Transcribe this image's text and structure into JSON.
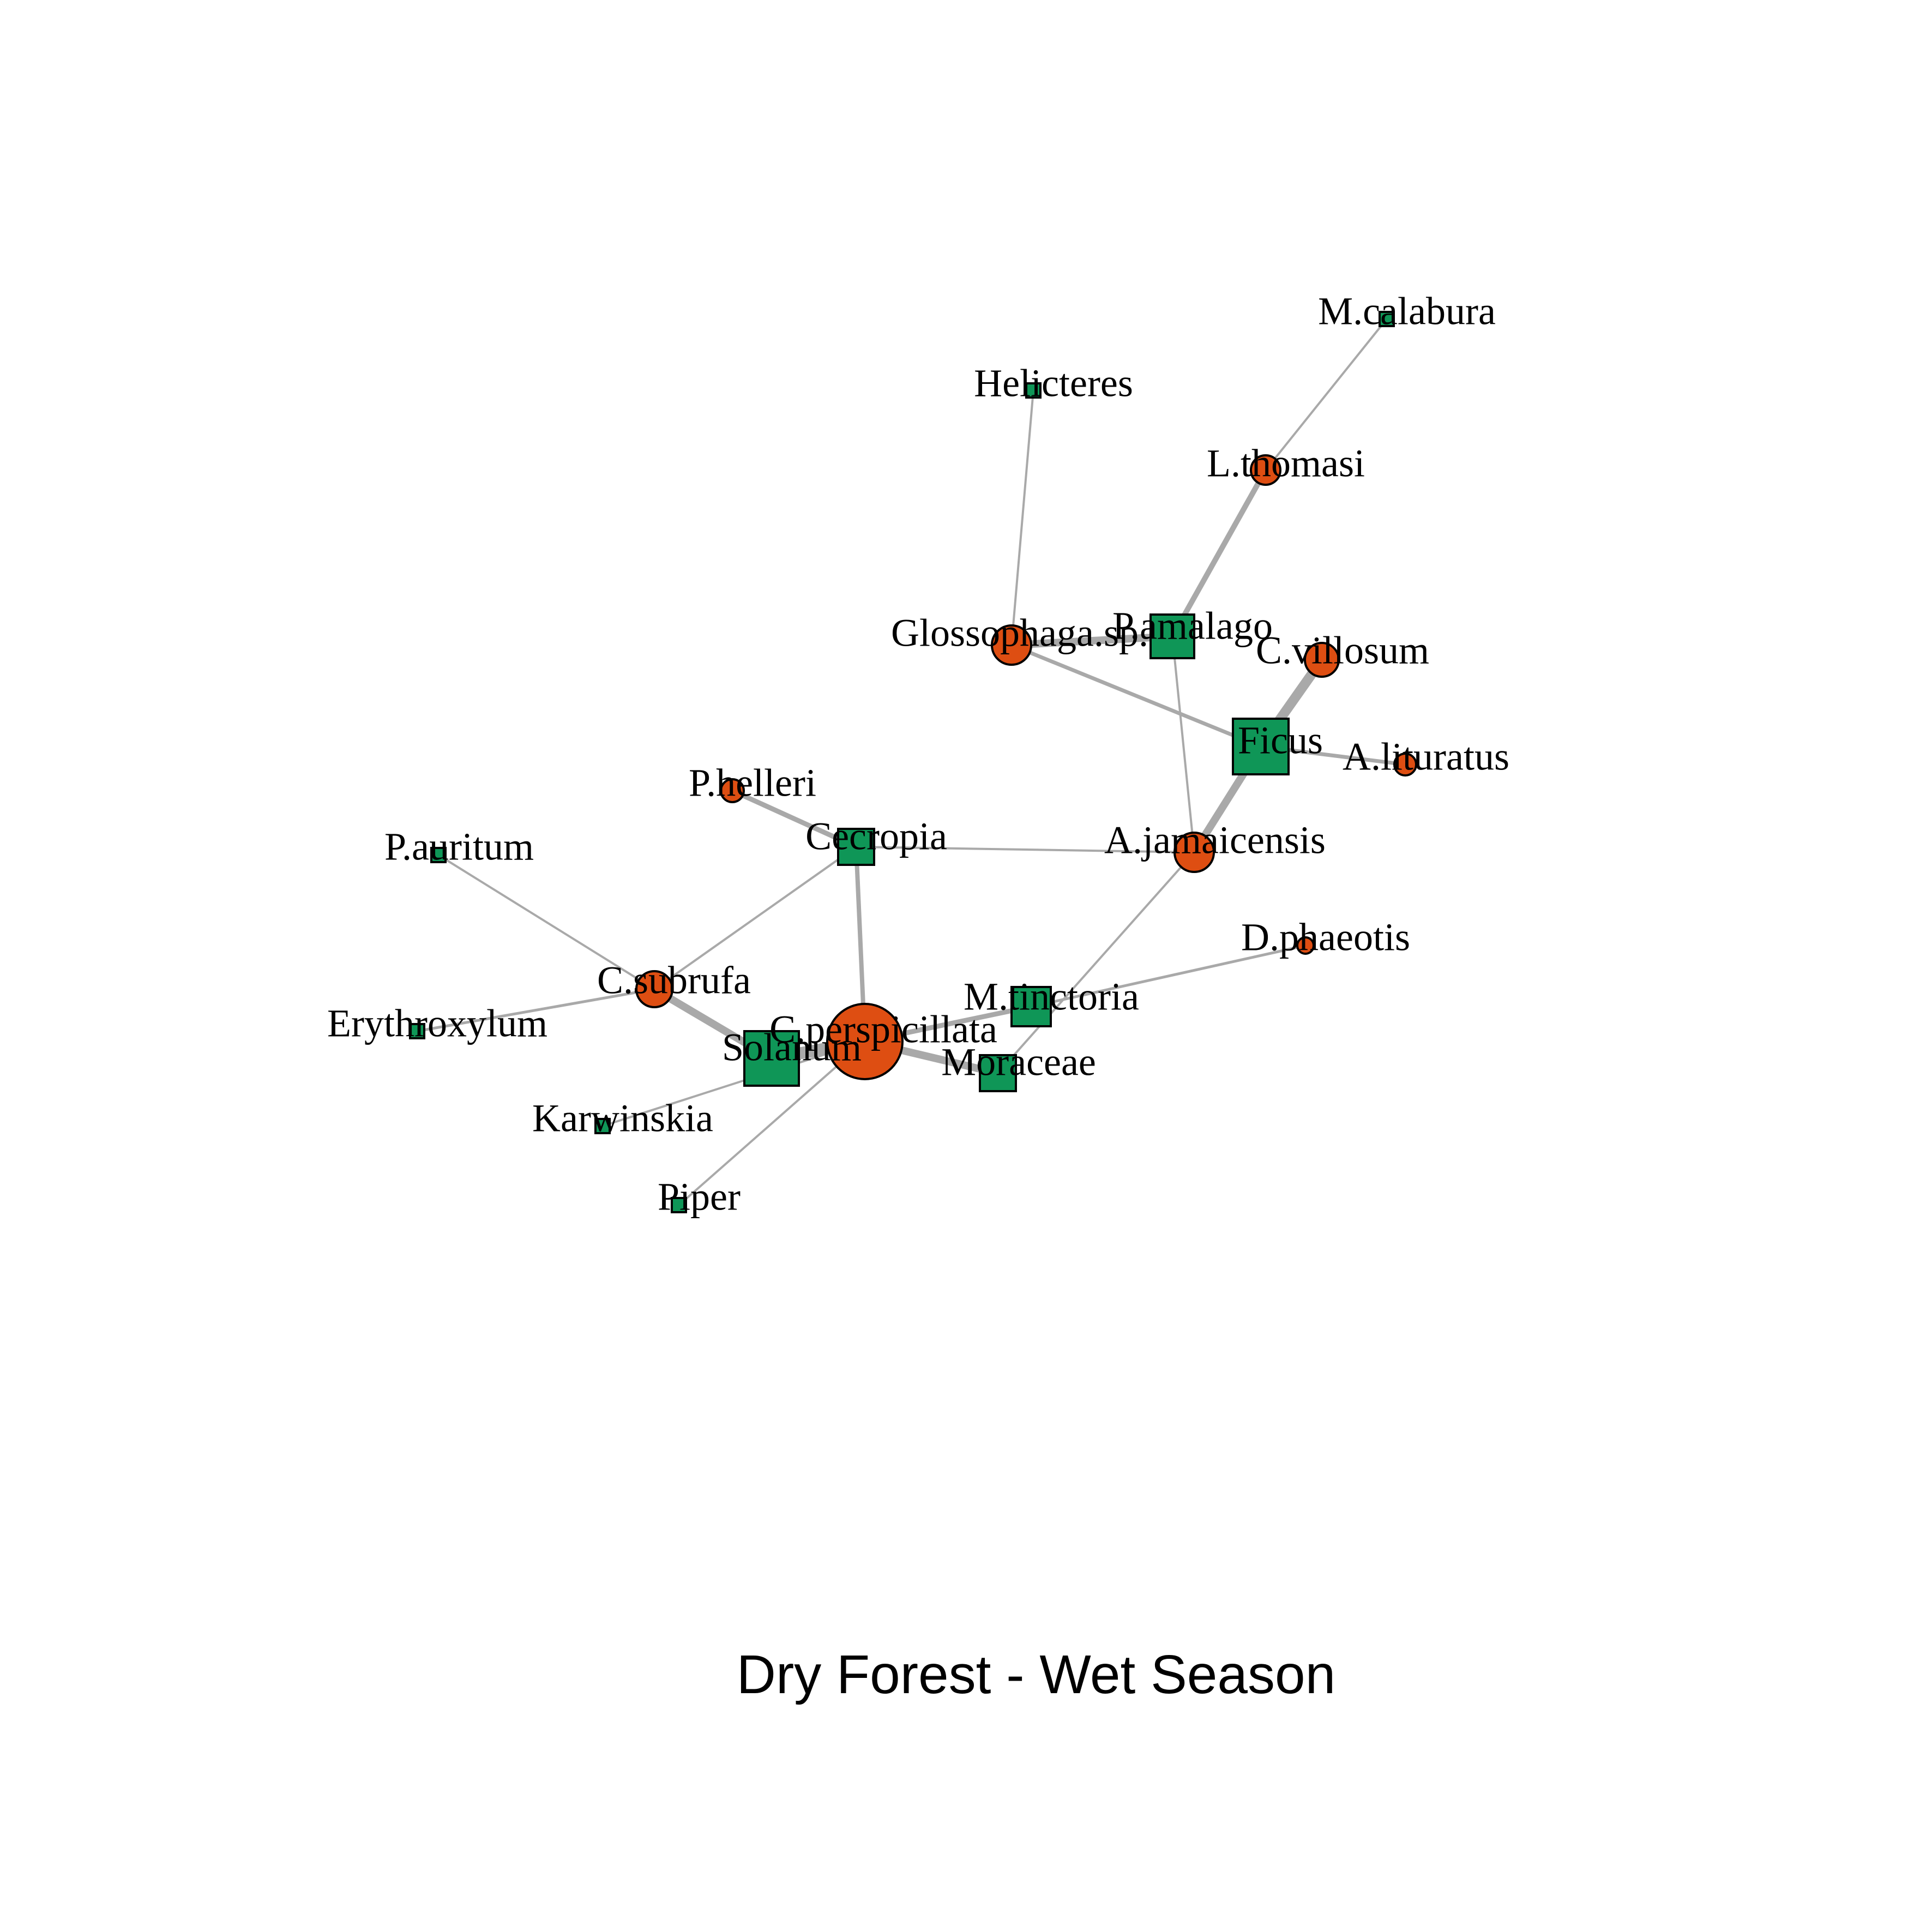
{
  "title": "Dry Forest - Wet Season",
  "colors": {
    "bat_fill": "#DE4E12",
    "plant_fill": "#0F9657",
    "edge": "#A9A9A9",
    "outline": "#000000"
  },
  "nodes": [
    {
      "id": "M.calabura",
      "label": "M.calabura",
      "kind": "plant",
      "shape": "square"
    },
    {
      "id": "Helicteres",
      "label": "Helicteres",
      "kind": "plant",
      "shape": "square"
    },
    {
      "id": "L.thomasi",
      "label": "L.thomasi",
      "kind": "bat",
      "shape": "circle"
    },
    {
      "id": "Glossophaga.sp.",
      "label": "Glossophaga.sp.",
      "kind": "bat",
      "shape": "circle"
    },
    {
      "id": "P.amalago",
      "label": "P.amalago",
      "kind": "plant",
      "shape": "square"
    },
    {
      "id": "C.villosum",
      "label": "C.villosum",
      "kind": "bat",
      "shape": "circle"
    },
    {
      "id": "Ficus",
      "label": "Ficus",
      "kind": "plant",
      "shape": "square"
    },
    {
      "id": "A.lituratus",
      "label": "A.lituratus",
      "kind": "bat",
      "shape": "circle"
    },
    {
      "id": "P.helleri",
      "label": "P.helleri",
      "kind": "bat",
      "shape": "circle"
    },
    {
      "id": "Cecropia",
      "label": "Cecropia",
      "kind": "plant",
      "shape": "square"
    },
    {
      "id": "A.jamaicensis",
      "label": "A.jamaicensis",
      "kind": "bat",
      "shape": "circle"
    },
    {
      "id": "P.auritum",
      "label": "P.auritum",
      "kind": "plant",
      "shape": "square"
    },
    {
      "id": "D.phaeotis",
      "label": "D.phaeotis",
      "kind": "bat",
      "shape": "circle"
    },
    {
      "id": "C.subrufa",
      "label": "C.subrufa",
      "kind": "bat",
      "shape": "circle"
    },
    {
      "id": "M.tinctoria",
      "label": "M.tinctoria",
      "kind": "plant",
      "shape": "square"
    },
    {
      "id": "Erythroxylum",
      "label": "Erythroxylum",
      "kind": "plant",
      "shape": "square"
    },
    {
      "id": "C.perspicillata",
      "label": "C.perspicillata",
      "kind": "bat",
      "shape": "circle"
    },
    {
      "id": "Solanum",
      "label": "Solanum",
      "kind": "plant",
      "shape": "square"
    },
    {
      "id": "Moraceae",
      "label": "Moraceae",
      "kind": "plant",
      "shape": "square"
    },
    {
      "id": "Karwinskia",
      "label": "Karwinskia",
      "kind": "plant",
      "shape": "square"
    },
    {
      "id": "Piper",
      "label": "Piper",
      "kind": "plant",
      "shape": "square"
    }
  ],
  "edges": [
    {
      "from": "M.calabura",
      "to": "L.thomasi"
    },
    {
      "from": "L.thomasi",
      "to": "P.amalago"
    },
    {
      "from": "Helicteres",
      "to": "Glossophaga.sp."
    },
    {
      "from": "Glossophaga.sp.",
      "to": "P.amalago"
    },
    {
      "from": "Glossophaga.sp.",
      "to": "Ficus"
    },
    {
      "from": "P.amalago",
      "to": "A.jamaicensis"
    },
    {
      "from": "C.villosum",
      "to": "Ficus"
    },
    {
      "from": "Ficus",
      "to": "A.lituratus"
    },
    {
      "from": "Ficus",
      "to": "A.jamaicensis"
    },
    {
      "from": "P.helleri",
      "to": "Cecropia"
    },
    {
      "from": "Cecropia",
      "to": "A.jamaicensis"
    },
    {
      "from": "Cecropia",
      "to": "C.subrufa"
    },
    {
      "from": "Cecropia",
      "to": "C.perspicillata"
    },
    {
      "from": "A.jamaicensis",
      "to": "Moraceae"
    },
    {
      "from": "P.auritum",
      "to": "C.subrufa"
    },
    {
      "from": "C.subrufa",
      "to": "Erythroxylum"
    },
    {
      "from": "C.subrufa",
      "to": "Solanum"
    },
    {
      "from": "D.phaeotis",
      "to": "M.tinctoria"
    },
    {
      "from": "M.tinctoria",
      "to": "C.perspicillata"
    },
    {
      "from": "C.perspicillata",
      "to": "Solanum"
    },
    {
      "from": "C.perspicillata",
      "to": "Moraceae"
    },
    {
      "from": "C.perspicillata",
      "to": "Karwinskia"
    },
    {
      "from": "C.perspicillata",
      "to": "Piper"
    }
  ]
}
